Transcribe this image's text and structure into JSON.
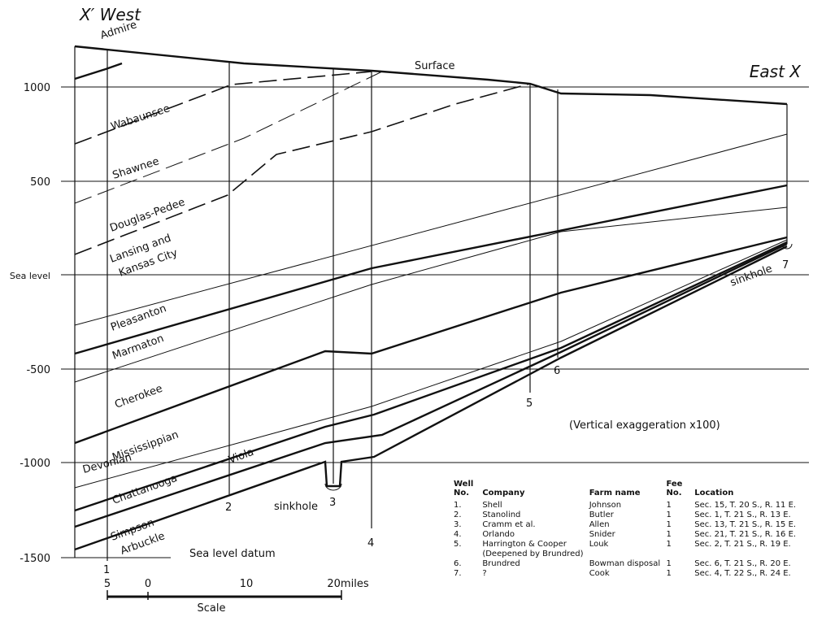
{
  "header": {
    "west": "X′ West",
    "east": "East X"
  },
  "axis": {
    "ticks": [
      "1000",
      "500",
      "Sea level",
      "-500",
      "-1000",
      "-1500"
    ]
  },
  "annotations": {
    "surface": "Surface",
    "sinkhole_left": "sinkhole",
    "sinkhole_right": "sinkhole",
    "datum": "Sea level datum",
    "exaggeration": "(Vertical exaggeration x100)"
  },
  "formations": [
    "Admire",
    "Wabaunsee",
    "Shawnee",
    "Douglas-Pedee",
    "Lansing and",
    "Kansas City",
    "Pleasanton",
    "Marmaton",
    "Cherokee",
    "Mississippian",
    "Devonian",
    "Chattanooga",
    "Viola",
    "Simpson",
    "Arbuckle"
  ],
  "wells": [
    "1",
    "2",
    "3",
    "4",
    "5",
    "6",
    "7"
  ],
  "scale": {
    "ticks": [
      "5",
      "0",
      "10",
      "20miles"
    ],
    "label": "Scale"
  },
  "table": {
    "headers": [
      "Well No.",
      "Company",
      "Farm name",
      "Fee No.",
      "Location"
    ],
    "rows": [
      [
        "1.",
        "Shell",
        "Johnson",
        "1",
        "Sec. 15, T. 20 S., R. 11 E."
      ],
      [
        "2.",
        "Stanolind",
        "Butler",
        "1",
        "Sec. 1, T. 21 S., R. 13 E."
      ],
      [
        "3.",
        "Cramm et al.",
        "Allen",
        "1",
        "Sec. 13, T. 21 S., R. 15 E."
      ],
      [
        "4.",
        "Orlando",
        "Snider",
        "1",
        "Sec. 21, T. 21 S., R. 16 E."
      ],
      [
        "5.",
        "Harrington & Cooper (Deepened by Brundred)",
        "Louk",
        "1",
        "Sec. 2, T. 21 S., R. 19 E."
      ],
      [
        "6.",
        "Brundred",
        "Bowman disposal",
        "1",
        "Sec. 6, T. 21 S., R. 20 E."
      ],
      [
        "7.",
        "?",
        "Cook",
        "1",
        "Sec. 4, T. 22 S., R. 24 E."
      ]
    ]
  }
}
